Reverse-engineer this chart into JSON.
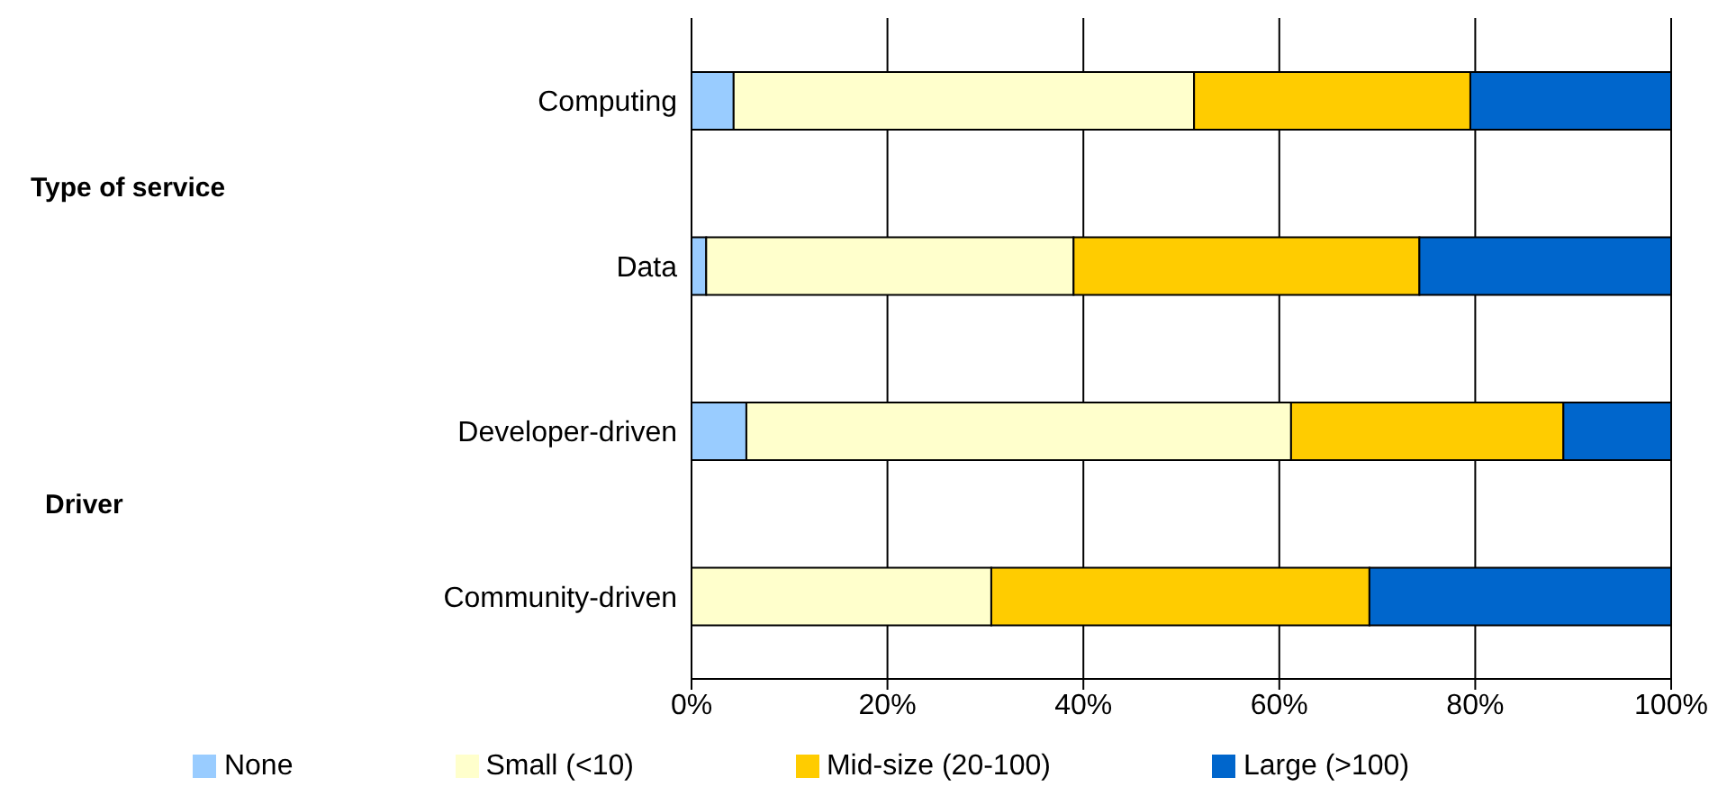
{
  "chart_data": {
    "type": "bar",
    "orientation": "horizontal",
    "stacked": true,
    "categories": [
      "Computing",
      "Data",
      "Developer-driven",
      "Community-driven"
    ],
    "series": [
      {
        "name": "None",
        "color": "#99ccff",
        "values": [
          4.3,
          1.5,
          5.6,
          0
        ]
      },
      {
        "name": "Small (<10)",
        "color": "#ffffcc",
        "values": [
          47,
          37.5,
          55.6,
          30.6
        ]
      },
      {
        "name": "Mid-size (20-100)",
        "color": "#ffcc00",
        "values": [
          28.2,
          35.3,
          27.8,
          38.6
        ]
      },
      {
        "name": "Large (>100)",
        "color": "#0066cc",
        "values": [
          20.5,
          25.7,
          11,
          30.8
        ]
      }
    ],
    "xlim": [
      0,
      100
    ],
    "xticks": [
      {
        "value": 0,
        "label": "0%"
      },
      {
        "value": 20,
        "label": "20%"
      },
      {
        "value": 40,
        "label": "40%"
      },
      {
        "value": 60,
        "label": "60%"
      },
      {
        "value": 80,
        "label": "80%"
      },
      {
        "value": 100,
        "label": "100%"
      }
    ],
    "grid": "x",
    "legend": "bottom",
    "annotations": [
      "Type of service",
      "Driver"
    ]
  }
}
